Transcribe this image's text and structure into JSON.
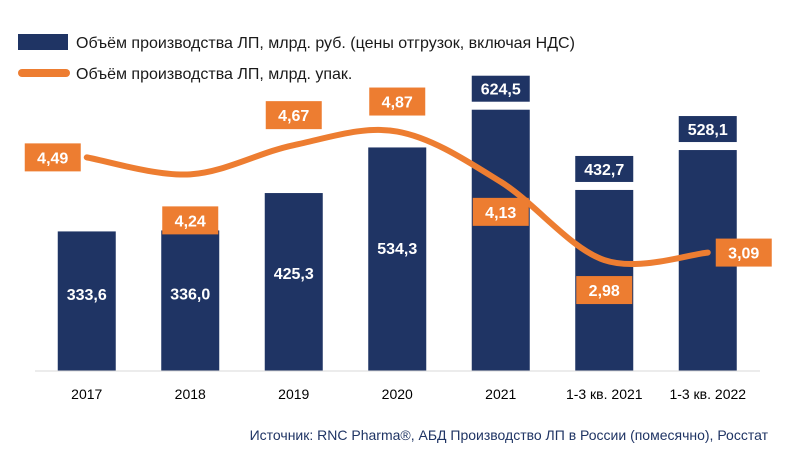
{
  "chart_data": {
    "type": "bar+line",
    "categories": [
      "2017",
      "2018",
      "2019",
      "2020",
      "2021",
      "1-3 кв. 2021",
      "1-3 кв. 2022"
    ],
    "series": [
      {
        "name": "Объём производства ЛП, млрд. руб. (цены отгрузок, включая НДС)",
        "type": "bar",
        "color": "#1f3464",
        "values": [
          333.6,
          336.0,
          425.3,
          534.3,
          624.5,
          432.7,
          528.1
        ],
        "labels": [
          "333,6",
          "336,0",
          "425,3",
          "534,3",
          "624,5",
          "432,7",
          "528,1"
        ]
      },
      {
        "name": "Объём производства ЛП, млрд. упак.",
        "type": "line",
        "color": "#ed7d31",
        "values": [
          4.49,
          4.24,
          4.67,
          4.87,
          4.13,
          2.98,
          3.09
        ],
        "labels": [
          "4,49",
          "4,24",
          "4,67",
          "4,87",
          "4,13",
          "2,98",
          "3,09"
        ]
      }
    ],
    "ylim_bar": [
      0,
      700
    ],
    "ylim_line": [
      0,
      7
    ],
    "grid": false,
    "legend_position": "top-left",
    "source": "Источник: RNC Pharma®, АБД Производство ЛП в России (помесячно), Росстат"
  }
}
